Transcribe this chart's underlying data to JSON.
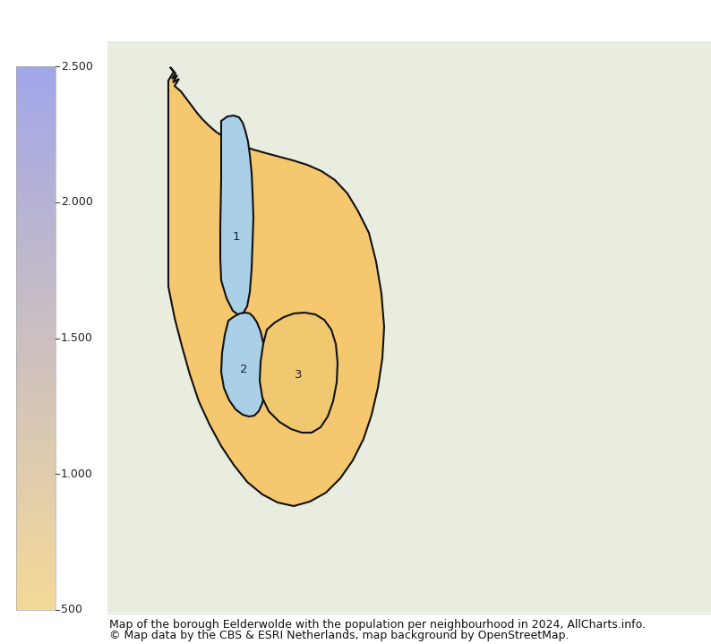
{
  "title_line1": "Map of the borough Eelderwolde with the population per neighbourhood in 2024, AllCharts.info.",
  "title_line2": "© Map data by the CBS & ESRI Netherlands, map background by OpenStreetMap.",
  "colorbar_vmin": 500,
  "colorbar_vmax": 2500,
  "colorbar_ticks": [
    500,
    1000,
    1500,
    2000,
    2500
  ],
  "colorbar_ticklabels": [
    "500",
    "1.000",
    "1.500",
    "2.000",
    "2.500"
  ],
  "fig_width": 7.94,
  "fig_height": 7.19,
  "dpi": 100,
  "background_color": "#ffffff",
  "colormap_top_color": "#c8e0ee",
  "colormap_bottom_color": "#f5d898",
  "caption_fontsize": 9,
  "colorbar_tick_fontsize": 9,
  "outer_fill": "#f5c870",
  "inner_fill_blue": "#aad0e8",
  "n3_fill": "#f0c870",
  "border_color": "#111111",
  "border_linewidth": 1.5,
  "map_bg_color": "#e8ede0"
}
